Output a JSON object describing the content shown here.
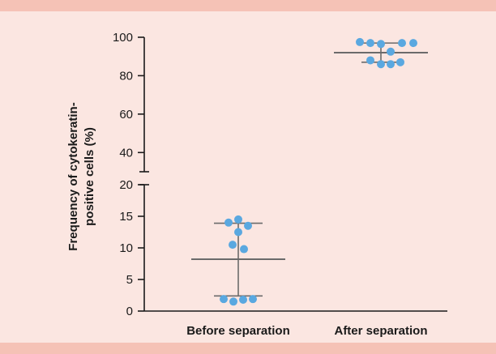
{
  "colors": {
    "background": "#fbe6e1",
    "band": "#f5c2b6",
    "axis": "#1a1a1a",
    "summary_line": "#6b6b6b",
    "point": "#5aa8e0"
  },
  "chart_data": {
    "type": "scatter",
    "ylabel_lines": [
      "Frequency of cytokeratin-",
      "positive cells (%)"
    ],
    "categories": [
      "Before separation",
      "After separation"
    ],
    "y_axis_broken": true,
    "lower_segment": {
      "range": [
        0,
        20
      ],
      "ticks": [
        0,
        5,
        10,
        15,
        20
      ]
    },
    "upper_segment": {
      "range": [
        30,
        100
      ],
      "ticks": [
        40,
        60,
        80,
        100
      ]
    },
    "tick_labels": [
      "0",
      "5",
      "10",
      "15",
      "20",
      "40",
      "60",
      "80",
      "100"
    ],
    "grid": false,
    "series": [
      {
        "category": "Before separation",
        "points": [
          14.0,
          14.5,
          13.5,
          12.5,
          10.5,
          9.8,
          1.9,
          1.5,
          1.8,
          1.9
        ],
        "mean": 8.2,
        "sd_low": 2.4,
        "sd_high": 13.9
      },
      {
        "category": "After separation",
        "points": [
          97.5,
          97.0,
          96.5,
          97.0,
          97.0,
          92.5,
          87.0,
          86.0,
          86.0,
          88.0
        ],
        "mean": 92.0,
        "sd_low": 87.0,
        "sd_high": 97.0
      }
    ]
  }
}
